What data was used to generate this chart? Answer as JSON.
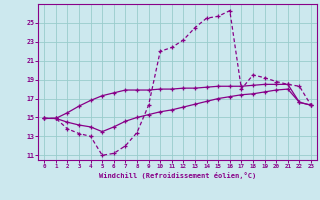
{
  "xlabel": "Windchill (Refroidissement éolien,°C)",
  "background_color": "#cce8ee",
  "line_color": "#880088",
  "grid_color": "#99cccc",
  "xlim": [
    -0.5,
    23.5
  ],
  "ylim": [
    10.5,
    27.0
  ],
  "yticks": [
    11,
    13,
    15,
    17,
    19,
    21,
    23,
    25
  ],
  "xticks": [
    0,
    1,
    2,
    3,
    4,
    5,
    6,
    7,
    8,
    9,
    10,
    11,
    12,
    13,
    14,
    15,
    16,
    17,
    18,
    19,
    20,
    21,
    22,
    23
  ],
  "line1_x": [
    0,
    1,
    2,
    3,
    4,
    5,
    6,
    7,
    8,
    9,
    10,
    11,
    12,
    13,
    14,
    15,
    16,
    17,
    18,
    19,
    20,
    21,
    22,
    23
  ],
  "line1_y": [
    14.9,
    14.9,
    15.5,
    16.2,
    16.8,
    17.3,
    17.6,
    17.9,
    17.9,
    17.9,
    18.0,
    18.0,
    18.1,
    18.1,
    18.2,
    18.3,
    18.3,
    18.3,
    18.4,
    18.5,
    18.5,
    18.5,
    16.6,
    16.3
  ],
  "line2_x": [
    0,
    1,
    2,
    3,
    4,
    5,
    6,
    7,
    8,
    9,
    10,
    11,
    12,
    13,
    14,
    15,
    16,
    17,
    18,
    19,
    20,
    21,
    22,
    23
  ],
  "line2_y": [
    14.9,
    14.9,
    13.8,
    13.3,
    13.0,
    11.0,
    11.2,
    12.0,
    13.4,
    16.3,
    22.0,
    22.4,
    23.2,
    24.5,
    25.5,
    25.7,
    26.3,
    18.0,
    19.5,
    19.2,
    18.8,
    18.5,
    18.3,
    16.3
  ],
  "line3_x": [
    0,
    1,
    2,
    3,
    4,
    5,
    6,
    7,
    8,
    9,
    10,
    11,
    12,
    13,
    14,
    15,
    16,
    17,
    18,
    19,
    20,
    21,
    22,
    23
  ],
  "line3_y": [
    14.9,
    14.9,
    14.5,
    14.2,
    14.0,
    13.5,
    14.0,
    14.6,
    15.0,
    15.3,
    15.6,
    15.8,
    16.1,
    16.4,
    16.7,
    17.0,
    17.2,
    17.4,
    17.5,
    17.7,
    17.9,
    18.0,
    16.6,
    16.3
  ]
}
